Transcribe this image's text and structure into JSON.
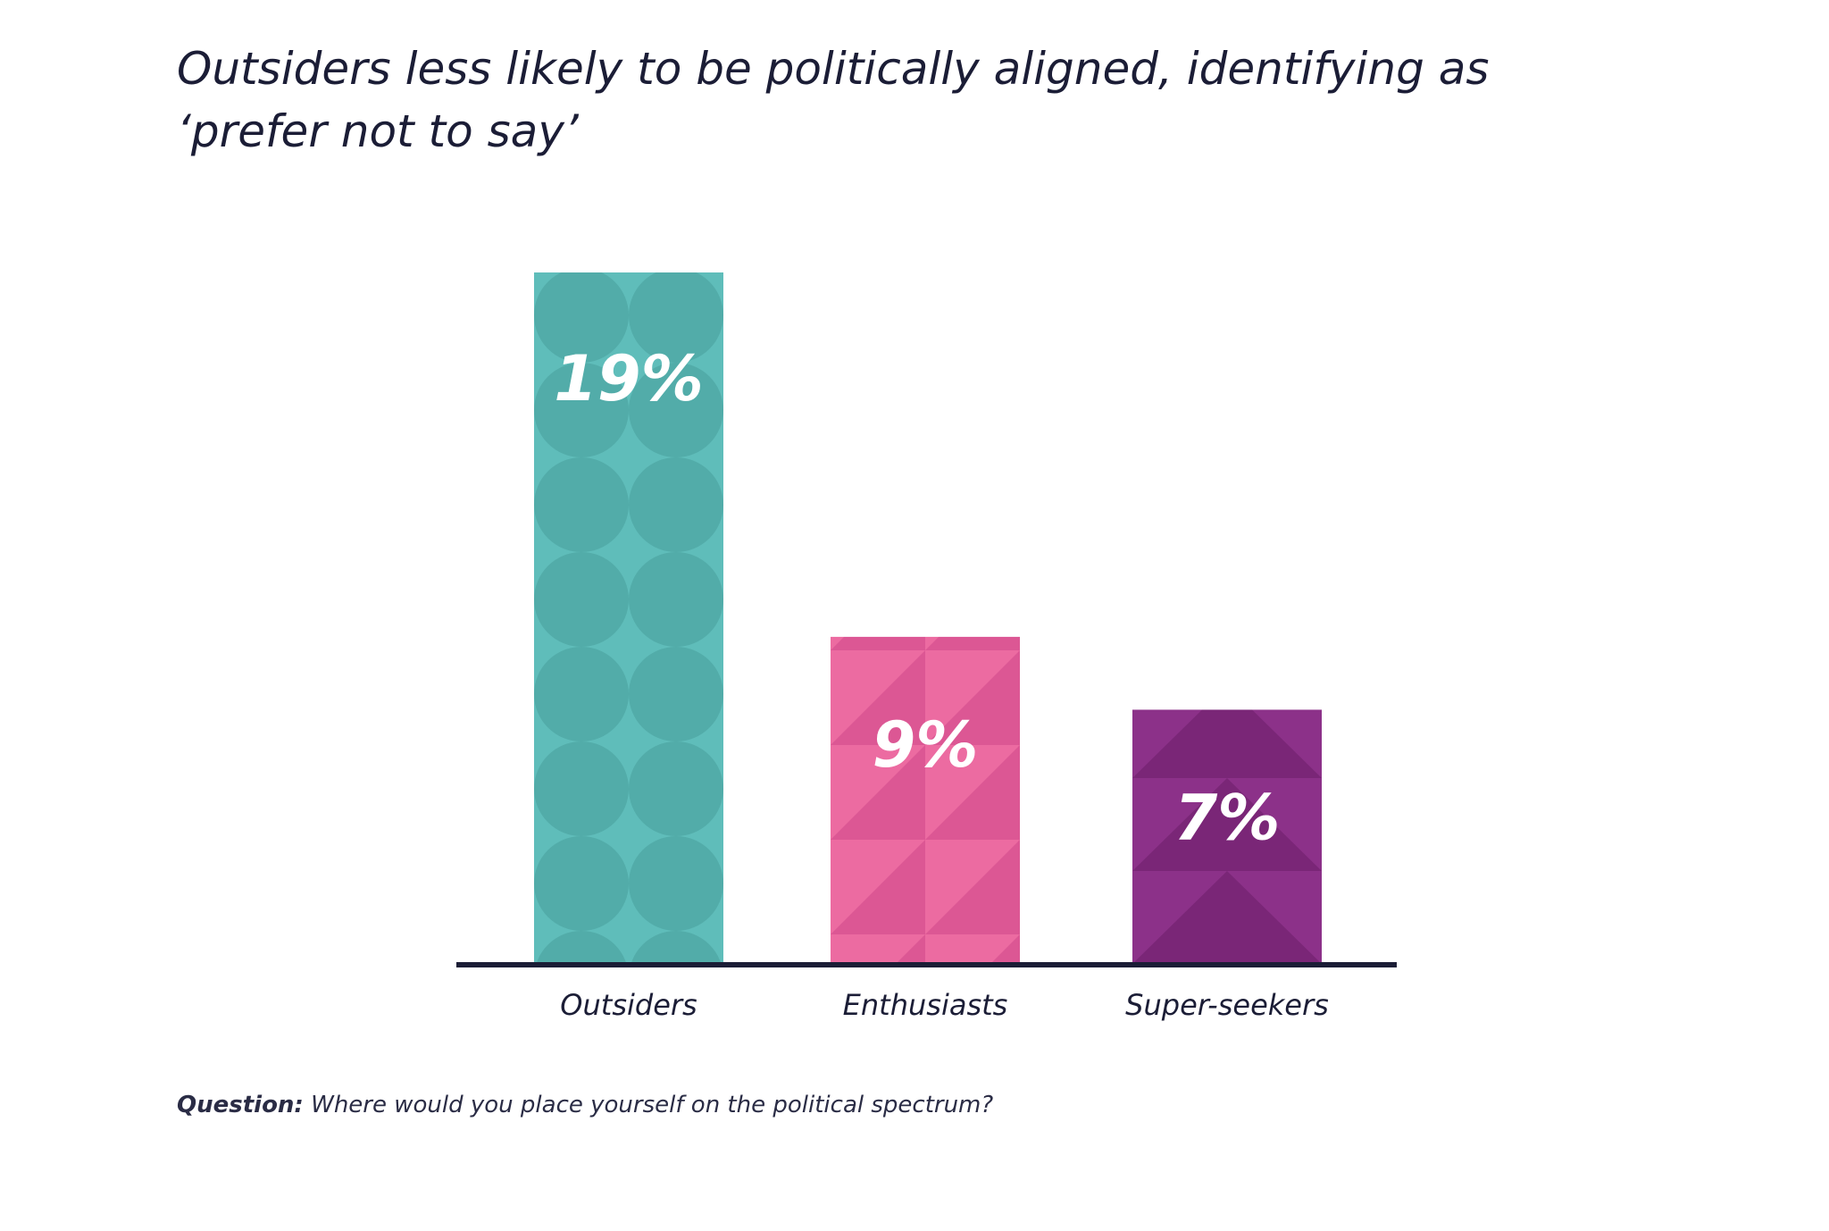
{
  "title": "Outsiders less likely to be politically aligned, identifying as ‘prefer not to say’",
  "chart_data": {
    "type": "bar",
    "categories": [
      "Outsiders",
      "Enthusiasts",
      "Super-seekers"
    ],
    "values": [
      19,
      9,
      7
    ],
    "value_labels": [
      "19%",
      "9%",
      "7%"
    ],
    "colors": [
      "#5fbdba",
      "#ec6ba1",
      "#8c3189"
    ],
    "pattern_colors": [
      "#52aca9",
      "#dc5794",
      "#7a2677"
    ],
    "patterns": [
      "circles",
      "triangles",
      "chevrons"
    ],
    "xlabel": "",
    "ylabel": "",
    "ylim": [
      0,
      19
    ],
    "grid": false,
    "legend": "none"
  },
  "footnote": {
    "label": "Question:",
    "text": " Where would you place yourself on the political spectrum?"
  }
}
